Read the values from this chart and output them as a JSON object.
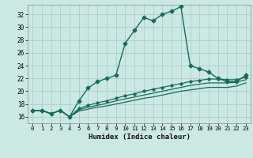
{
  "xlabel": "Humidex (Indice chaleur)",
  "xlim": [
    -0.5,
    23.5
  ],
  "ylim": [
    15.0,
    33.5
  ],
  "xticks": [
    0,
    1,
    2,
    3,
    4,
    5,
    6,
    7,
    8,
    9,
    10,
    11,
    12,
    13,
    14,
    15,
    16,
    17,
    18,
    19,
    20,
    21,
    22,
    23
  ],
  "yticks": [
    16,
    18,
    20,
    22,
    24,
    26,
    28,
    30,
    32
  ],
  "bg_color": "#cce8e4",
  "grid_color": "#afd4d0",
  "line_color": "#1a6b5a",
  "line1_x": [
    0,
    1,
    2,
    3,
    4,
    5,
    6,
    7,
    8,
    9,
    10,
    11,
    12,
    13,
    14,
    15,
    16,
    17,
    18,
    19,
    20,
    21,
    22,
    23
  ],
  "line1_y": [
    17.0,
    17.0,
    16.5,
    17.0,
    16.0,
    18.5,
    20.5,
    21.5,
    22.0,
    22.5,
    27.5,
    29.5,
    31.5,
    31.0,
    32.0,
    32.5,
    33.2,
    24.0,
    23.5,
    23.0,
    22.0,
    21.5,
    21.5,
    22.5
  ],
  "line2_x": [
    0,
    1,
    2,
    3,
    4,
    5,
    6,
    7,
    8,
    9,
    10,
    11,
    12,
    13,
    14,
    15,
    16,
    17,
    18,
    19,
    20,
    21,
    22,
    23
  ],
  "line2_y": [
    17.0,
    17.0,
    16.5,
    17.0,
    16.0,
    17.3,
    17.8,
    18.2,
    18.5,
    18.9,
    19.3,
    19.6,
    20.0,
    20.3,
    20.6,
    20.9,
    21.2,
    21.5,
    21.7,
    21.9,
    21.9,
    21.8,
    21.8,
    22.2
  ],
  "line3_x": [
    0,
    1,
    2,
    3,
    4,
    5,
    6,
    7,
    8,
    9,
    10,
    11,
    12,
    13,
    14,
    15,
    16,
    17,
    18,
    19,
    20,
    21,
    22,
    23
  ],
  "line3_y": [
    17.0,
    17.0,
    16.5,
    17.0,
    16.0,
    17.1,
    17.5,
    17.8,
    18.1,
    18.5,
    18.8,
    19.1,
    19.4,
    19.7,
    20.0,
    20.3,
    20.6,
    20.9,
    21.1,
    21.3,
    21.3,
    21.3,
    21.4,
    21.8
  ],
  "line4_x": [
    0,
    1,
    2,
    3,
    4,
    5,
    6,
    7,
    8,
    9,
    10,
    11,
    12,
    13,
    14,
    15,
    16,
    17,
    18,
    19,
    20,
    21,
    22,
    23
  ],
  "line4_y": [
    17.0,
    17.0,
    16.5,
    17.0,
    16.0,
    16.9,
    17.2,
    17.5,
    17.7,
    18.0,
    18.3,
    18.6,
    18.9,
    19.1,
    19.4,
    19.7,
    20.0,
    20.2,
    20.4,
    20.6,
    20.6,
    20.6,
    20.8,
    21.3
  ]
}
